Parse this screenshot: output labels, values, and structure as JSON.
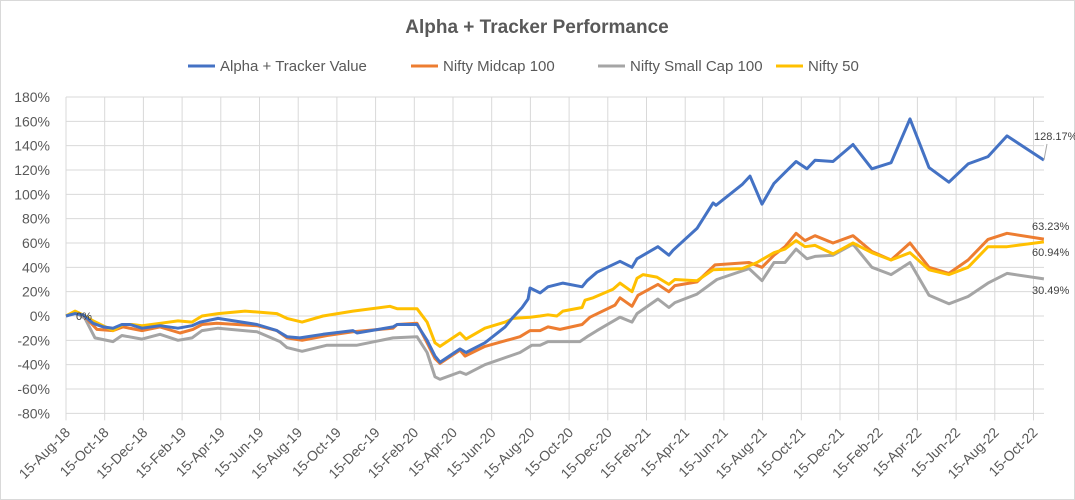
{
  "chart_data": {
    "type": "line",
    "title": "Alpha + Tracker Performance",
    "xlabel": "",
    "ylabel": "",
    "x_unit": "months since 15-Aug-18",
    "x_tick_labels": [
      "15-Aug-18",
      "15-Oct-18",
      "15-Dec-18",
      "15-Feb-19",
      "15-Apr-19",
      "15-Jun-19",
      "15-Aug-19",
      "15-Oct-19",
      "15-Dec-19",
      "15-Feb-20",
      "15-Apr-20",
      "15-Jun-20",
      "15-Aug-20",
      "15-Oct-20",
      "15-Dec-20",
      "15-Feb-21",
      "15-Apr-21",
      "15-Jun-21",
      "15-Aug-21",
      "15-Oct-21",
      "15-Dec-21",
      "15-Feb-22",
      "15-Apr-22",
      "15-Jun-22",
      "15-Aug-22",
      "15-Oct-22"
    ],
    "x_tick_step_months": 2,
    "ylim": [
      -80,
      180
    ],
    "y_tick_step": 20,
    "y_tick_suffix": "%",
    "grid": true,
    "legend_position": "top",
    "start_label": "0%",
    "series": [
      {
        "name": "Alpha + Tracker Value",
        "color": "#4472C4",
        "end_label": "128.17%",
        "points": [
          [
            0,
            0
          ],
          [
            0.47,
            2
          ],
          [
            0.88,
            1
          ],
          [
            1.4,
            -6
          ],
          [
            1.91,
            -9
          ],
          [
            2.43,
            -10
          ],
          [
            2.89,
            -7
          ],
          [
            3.31,
            -7
          ],
          [
            3.93,
            -10
          ],
          [
            4.86,
            -8
          ],
          [
            5.79,
            -10
          ],
          [
            6.51,
            -8
          ],
          [
            6.93,
            -5
          ],
          [
            7.86,
            -2
          ],
          [
            9.87,
            -7
          ],
          [
            10.9,
            -12
          ],
          [
            11.42,
            -17
          ],
          [
            12.09,
            -18
          ],
          [
            13.28,
            -15
          ],
          [
            14.83,
            -12
          ],
          [
            15.04,
            -14
          ],
          [
            16.9,
            -9
          ],
          [
            17.11,
            -7
          ],
          [
            18.14,
            -7
          ],
          [
            18.66,
            -20
          ],
          [
            19.07,
            -33
          ],
          [
            19.33,
            -38
          ],
          [
            20.36,
            -27
          ],
          [
            20.67,
            -30
          ],
          [
            21.65,
            -22
          ],
          [
            22.69,
            -9
          ],
          [
            23.05,
            -2
          ],
          [
            23.57,
            7
          ],
          [
            23.88,
            14
          ],
          [
            23.98,
            23
          ],
          [
            24.5,
            19
          ],
          [
            24.91,
            24
          ],
          [
            25.68,
            27
          ],
          [
            26.67,
            24
          ],
          [
            26.93,
            29
          ],
          [
            27.44,
            36
          ],
          [
            28.63,
            45
          ],
          [
            29.25,
            40
          ],
          [
            29.51,
            47
          ],
          [
            30.59,
            57
          ],
          [
            31.16,
            50
          ],
          [
            31.37,
            54
          ],
          [
            32.61,
            72
          ],
          [
            33.44,
            93
          ],
          [
            33.59,
            91
          ],
          [
            34.94,
            108
          ],
          [
            35.35,
            115
          ],
          [
            35.97,
            92
          ],
          [
            36.59,
            109
          ],
          [
            37.16,
            118
          ],
          [
            37.73,
            127
          ],
          [
            38.29,
            121
          ],
          [
            38.71,
            128
          ],
          [
            39.64,
            127
          ],
          [
            40.67,
            141
          ],
          [
            41.65,
            121
          ],
          [
            42.64,
            126
          ],
          [
            43.62,
            162
          ],
          [
            44.6,
            122
          ],
          [
            45.63,
            110
          ],
          [
            46.62,
            125
          ],
          [
            47.65,
            131
          ],
          [
            48.63,
            148
          ],
          [
            50.54,
            128.17
          ]
        ]
      },
      {
        "name": "Nifty Midcap 100",
        "color": "#ED7D31",
        "end_label": "63.23%",
        "points": [
          [
            0,
            0
          ],
          [
            0.47,
            3
          ],
          [
            0.88,
            1
          ],
          [
            1.6,
            -11
          ],
          [
            2.43,
            -12
          ],
          [
            2.95,
            -9
          ],
          [
            3.93,
            -12
          ],
          [
            4.86,
            -9
          ],
          [
            5.89,
            -14
          ],
          [
            6.56,
            -11
          ],
          [
            7.03,
            -7
          ],
          [
            7.8,
            -6
          ],
          [
            9.87,
            -8
          ],
          [
            10.9,
            -12
          ],
          [
            11.42,
            -18
          ],
          [
            12.2,
            -20
          ],
          [
            13.49,
            -16
          ],
          [
            14.83,
            -13
          ],
          [
            16.9,
            -10
          ],
          [
            17.11,
            -7
          ],
          [
            18.14,
            -6
          ],
          [
            18.66,
            -22
          ],
          [
            19.07,
            -35
          ],
          [
            19.33,
            -39
          ],
          [
            20.36,
            -28
          ],
          [
            20.62,
            -33
          ],
          [
            21.65,
            -25
          ],
          [
            23.46,
            -17
          ],
          [
            23.98,
            -12
          ],
          [
            24.5,
            -12
          ],
          [
            24.91,
            -9
          ],
          [
            25.53,
            -11
          ],
          [
            26.67,
            -7
          ],
          [
            27.08,
            -1
          ],
          [
            28.37,
            9
          ],
          [
            28.63,
            15
          ],
          [
            29.25,
            8
          ],
          [
            29.56,
            17
          ],
          [
            30.59,
            26
          ],
          [
            31.16,
            20
          ],
          [
            31.47,
            25
          ],
          [
            32.61,
            28
          ],
          [
            33.54,
            42
          ],
          [
            35.3,
            44
          ],
          [
            35.97,
            40
          ],
          [
            36.59,
            50
          ],
          [
            37.16,
            57
          ],
          [
            37.73,
            68
          ],
          [
            38.19,
            62
          ],
          [
            38.71,
            66
          ],
          [
            39.64,
            60
          ],
          [
            40.67,
            66
          ],
          [
            41.65,
            53
          ],
          [
            42.64,
            46
          ],
          [
            43.62,
            60
          ],
          [
            44.6,
            40
          ],
          [
            45.63,
            35
          ],
          [
            46.62,
            46
          ],
          [
            47.65,
            63
          ],
          [
            48.63,
            68
          ],
          [
            50.54,
            63.23
          ]
        ]
      },
      {
        "name": "Nifty Small Cap 100",
        "color": "#A5A5A5",
        "end_label": "30.49%",
        "points": [
          [
            0,
            0
          ],
          [
            0.47,
            3
          ],
          [
            0.98,
            -2
          ],
          [
            1.5,
            -18
          ],
          [
            2.43,
            -21
          ],
          [
            2.89,
            -16
          ],
          [
            3.93,
            -19
          ],
          [
            4.86,
            -15
          ],
          [
            5.79,
            -20
          ],
          [
            6.51,
            -18
          ],
          [
            7.03,
            -12
          ],
          [
            7.86,
            -10
          ],
          [
            9.87,
            -13
          ],
          [
            11.06,
            -21
          ],
          [
            11.42,
            -26
          ],
          [
            12.2,
            -29
          ],
          [
            13.49,
            -24
          ],
          [
            15.04,
            -24
          ],
          [
            16.9,
            -18
          ],
          [
            18.14,
            -17
          ],
          [
            18.66,
            -30
          ],
          [
            19.07,
            -50
          ],
          [
            19.33,
            -52
          ],
          [
            20.36,
            -46
          ],
          [
            20.67,
            -48
          ],
          [
            21.65,
            -40
          ],
          [
            23.46,
            -30
          ],
          [
            24.08,
            -24
          ],
          [
            24.5,
            -24
          ],
          [
            24.91,
            -21
          ],
          [
            26.56,
            -21
          ],
          [
            26.93,
            -17
          ],
          [
            27.44,
            -12
          ],
          [
            28.63,
            -1
          ],
          [
            29.25,
            -5
          ],
          [
            29.51,
            2
          ],
          [
            30.59,
            14
          ],
          [
            31.16,
            7
          ],
          [
            31.47,
            11
          ],
          [
            32.61,
            18
          ],
          [
            33.64,
            30
          ],
          [
            35.3,
            39
          ],
          [
            35.97,
            29
          ],
          [
            36.59,
            44
          ],
          [
            37.16,
            44
          ],
          [
            37.73,
            55
          ],
          [
            38.29,
            47
          ],
          [
            38.71,
            49
          ],
          [
            39.64,
            50
          ],
          [
            40.67,
            59
          ],
          [
            41.65,
            40
          ],
          [
            42.64,
            34
          ],
          [
            43.62,
            44
          ],
          [
            44.6,
            17
          ],
          [
            45.63,
            10
          ],
          [
            46.62,
            16
          ],
          [
            47.65,
            27
          ],
          [
            48.63,
            35
          ],
          [
            50.54,
            30.49
          ]
        ]
      },
      {
        "name": "Nifty 50",
        "color": "#FFC000",
        "end_label": "60.94%",
        "points": [
          [
            0,
            0
          ],
          [
            0.47,
            4
          ],
          [
            0.88,
            1
          ],
          [
            1.4,
            -4
          ],
          [
            2.43,
            -12
          ],
          [
            2.95,
            -7
          ],
          [
            3.41,
            -7
          ],
          [
            3.93,
            -8
          ],
          [
            4.86,
            -6
          ],
          [
            5.79,
            -4
          ],
          [
            6.51,
            -5
          ],
          [
            7.03,
            0
          ],
          [
            7.86,
            2
          ],
          [
            9.25,
            4
          ],
          [
            10.9,
            2
          ],
          [
            11.42,
            -2
          ],
          [
            12.2,
            -5
          ],
          [
            13.28,
            0
          ],
          [
            14.83,
            4
          ],
          [
            16.74,
            8
          ],
          [
            17.11,
            6
          ],
          [
            18.14,
            6
          ],
          [
            18.66,
            -5
          ],
          [
            19.07,
            -22
          ],
          [
            19.33,
            -25
          ],
          [
            20.36,
            -14
          ],
          [
            20.67,
            -19
          ],
          [
            21.65,
            -10
          ],
          [
            22.69,
            -5
          ],
          [
            23.1,
            -2
          ],
          [
            23.98,
            -1
          ],
          [
            24.5,
            0
          ],
          [
            24.91,
            1
          ],
          [
            25.37,
            0
          ],
          [
            25.68,
            4
          ],
          [
            26.67,
            7
          ],
          [
            26.82,
            13
          ],
          [
            27.24,
            15
          ],
          [
            28.27,
            22
          ],
          [
            28.63,
            27
          ],
          [
            29.25,
            20
          ],
          [
            29.51,
            31
          ],
          [
            29.82,
            34
          ],
          [
            30.54,
            32
          ],
          [
            31.16,
            26
          ],
          [
            31.47,
            30
          ],
          [
            32.61,
            29
          ],
          [
            33.44,
            38
          ],
          [
            34.94,
            39
          ],
          [
            35.71,
            44
          ],
          [
            36.59,
            52
          ],
          [
            37.16,
            55
          ],
          [
            37.73,
            62
          ],
          [
            38.19,
            57
          ],
          [
            38.71,
            58
          ],
          [
            39.64,
            51
          ],
          [
            40.67,
            60
          ],
          [
            41.65,
            52
          ],
          [
            42.64,
            46
          ],
          [
            43.62,
            52
          ],
          [
            44.6,
            38
          ],
          [
            45.63,
            34
          ],
          [
            46.62,
            40
          ],
          [
            47.65,
            57
          ],
          [
            48.63,
            57
          ],
          [
            50.54,
            60.94
          ]
        ]
      }
    ]
  }
}
